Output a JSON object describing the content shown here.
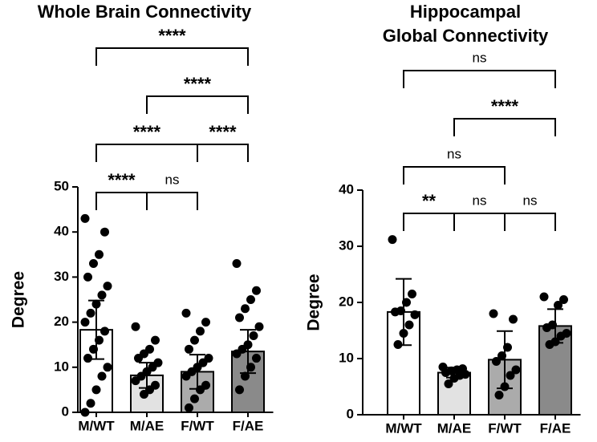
{
  "chart_data": [
    {
      "type": "bar",
      "title": [
        "Whole Brain Connectivity"
      ],
      "y_label": "Degree",
      "categories": [
        "M/WT",
        "M/AE",
        "F/WT",
        "F/AE"
      ],
      "values": [
        18.3,
        8.2,
        9,
        13.5
      ],
      "errors": [
        6.5,
        2.8,
        3.8,
        4.8
      ],
      "colors": [
        "#ffffff",
        "#e2e2e2",
        "#ababab",
        "#8a8a8a"
      ],
      "points": [
        [
          43,
          40,
          35,
          33,
          30,
          28,
          26,
          24,
          22,
          20,
          18,
          16,
          14,
          12,
          10,
          8,
          5,
          2,
          0
        ],
        [
          19,
          16,
          14,
          13,
          12,
          11,
          10,
          9,
          8,
          7,
          6,
          5,
          4
        ],
        [
          22,
          20,
          18,
          16,
          14,
          12,
          11,
          10,
          9,
          8,
          6,
          5,
          3,
          1
        ],
        [
          33,
          27,
          25,
          23,
          21,
          19,
          17,
          15,
          14,
          13,
          12,
          10,
          8,
          5
        ]
      ],
      "ylim": [
        0,
        50
      ],
      "yticks": [
        0,
        10,
        20,
        30,
        40,
        50
      ],
      "brackets": [
        {
          "from": "M/WT",
          "to": "M/AE",
          "label": "****"
        },
        {
          "from": "M/AE",
          "to": "F/WT",
          "label": "ns"
        },
        {
          "from": "M/WT",
          "to": "F/WT",
          "label": "****"
        },
        {
          "from": "F/WT",
          "to": "F/AE",
          "label": "****"
        },
        {
          "from": "M/AE",
          "to": "F/AE",
          "label": "****"
        },
        {
          "from": "M/WT",
          "to": "F/AE",
          "label": "****"
        }
      ]
    },
    {
      "type": "bar",
      "title": [
        "Hippocampal",
        "Global Connectivity"
      ],
      "y_label": "Degree",
      "categories": [
        "M/WT",
        "M/AE",
        "F/WT",
        "F/AE"
      ],
      "values": [
        18.3,
        7.5,
        9.8,
        15.8
      ],
      "errors": [
        5.9,
        0.9,
        5.1,
        3
      ],
      "colors": [
        "#ffffff",
        "#e2e2e2",
        "#ababab",
        "#8a8a8a"
      ],
      "points": [
        [
          31.2,
          21.5,
          20,
          18.5,
          18.3,
          17.8,
          16,
          14.5,
          12.5
        ],
        [
          8.5,
          8.2,
          8,
          7.8,
          7.5,
          7.2,
          7,
          6.5,
          5.5
        ],
        [
          18,
          17,
          12,
          10.5,
          9.5,
          8,
          7,
          5,
          3.5
        ],
        [
          21,
          20.5,
          19.5,
          16,
          15.5,
          14.5,
          14,
          13,
          12.5
        ]
      ],
      "ylim": [
        0,
        40
      ],
      "yticks": [
        0,
        10,
        20,
        30,
        40
      ],
      "brackets": [
        {
          "from": "M/WT",
          "to": "M/AE",
          "label": "**"
        },
        {
          "from": "M/AE",
          "to": "F/WT",
          "label": "ns"
        },
        {
          "from": "F/WT",
          "to": "F/AE",
          "label": "ns"
        },
        {
          "from": "M/WT",
          "to": "F/WT",
          "label": "ns"
        },
        {
          "from": "M/AE",
          "to": "F/AE",
          "label": "****"
        },
        {
          "from": "M/WT",
          "to": "F/AE",
          "label": "ns"
        }
      ]
    }
  ]
}
